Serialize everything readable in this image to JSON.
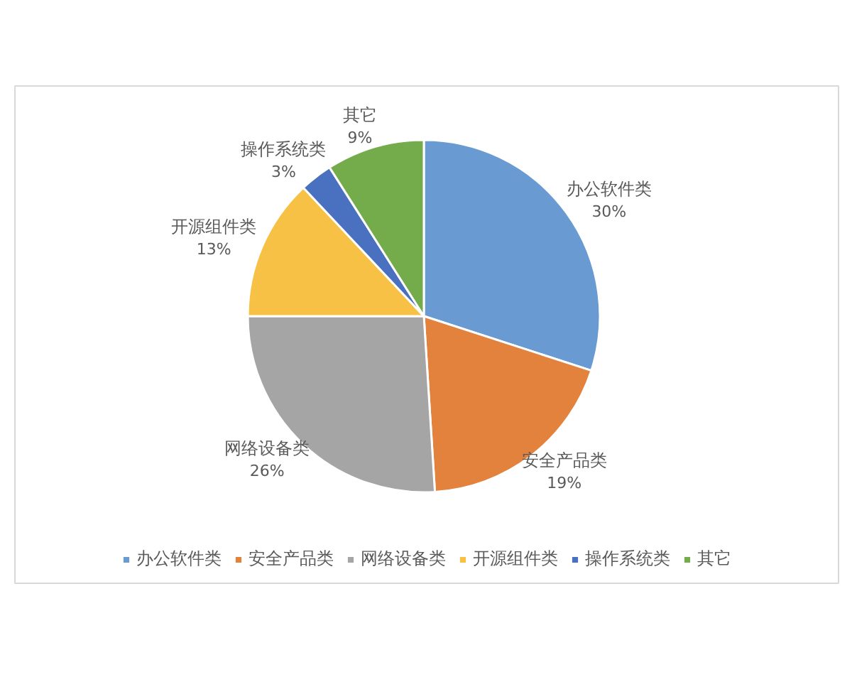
{
  "chart_data": {
    "type": "pie",
    "categories": [
      "办公软件类",
      "安全产品类",
      "网络设备类",
      "开源组件类",
      "操作系统类",
      "其它"
    ],
    "values": [
      30,
      19,
      26,
      13,
      3,
      9
    ],
    "colors": [
      "#699bd2",
      "#e2823d",
      "#a5a5a5",
      "#f6c144",
      "#4a70c0",
      "#74ac4c"
    ],
    "value_labels": [
      "30%",
      "19%",
      "26%",
      "13%",
      "3%",
      "9%"
    ],
    "legend": "bottom"
  }
}
